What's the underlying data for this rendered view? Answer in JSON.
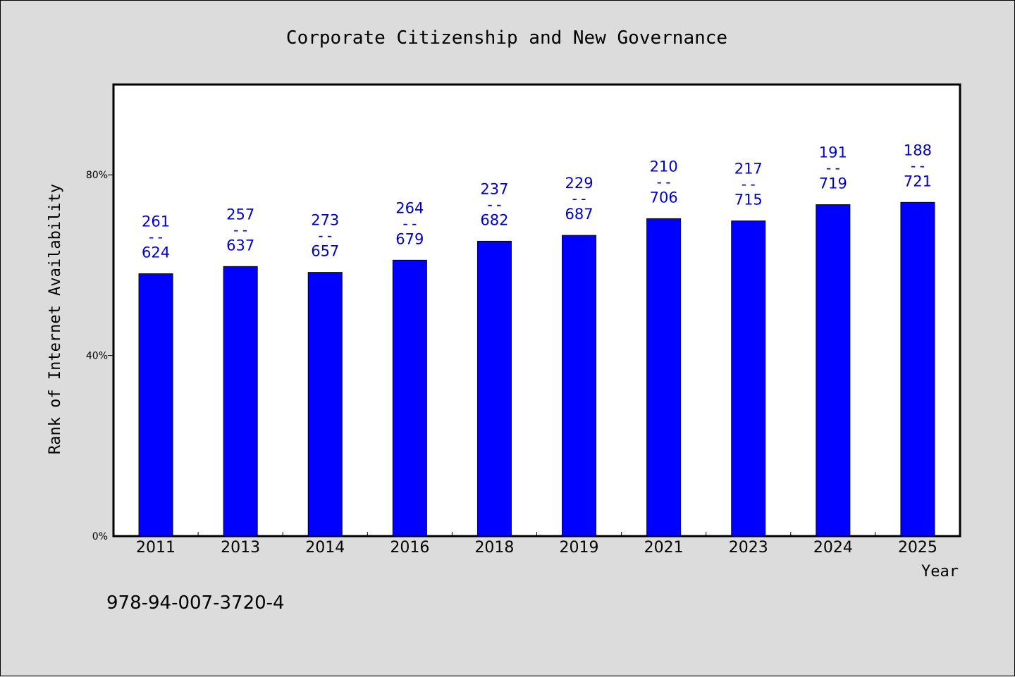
{
  "chart_data": {
    "type": "bar",
    "title": "Corporate Citizenship and New Governance",
    "xlabel": "Year",
    "ylabel": "Rank of Internet Availability",
    "footer_code": "978-94-007-3720-4",
    "categories": [
      "2011",
      "2013",
      "2014",
      "2016",
      "2018",
      "2019",
      "2021",
      "2023",
      "2024",
      "2025"
    ],
    "values": [
      58.1,
      59.7,
      58.4,
      61.1,
      65.3,
      66.6,
      70.3,
      69.8,
      73.4,
      73.9
    ],
    "labels_top": [
      "261",
      "257",
      "273",
      "264",
      "237",
      "229",
      "210",
      "217",
      "191",
      "188"
    ],
    "labels_sep": "--",
    "labels_bottom": [
      "624",
      "637",
      "657",
      "679",
      "682",
      "687",
      "706",
      "715",
      "719",
      "721"
    ],
    "ylim": [
      0,
      100
    ],
    "yticks": [
      0,
      40,
      80
    ],
    "ytick_labels": [
      "0%",
      "40%",
      "80%"
    ],
    "grid": false,
    "colors": {
      "bar": "#0000ff",
      "label": "#0000cc",
      "background": "#dcdcdc",
      "plot_bg": "#ffffff"
    }
  }
}
